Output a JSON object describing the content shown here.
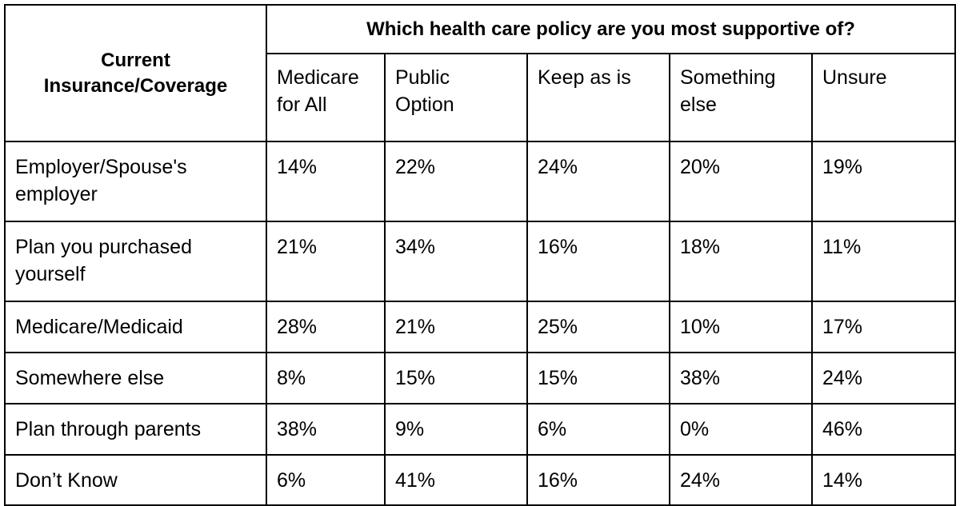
{
  "table": {
    "corner_label_line1": "Current",
    "corner_label_line2": "Insurance/Coverage",
    "group_header": "Which health care policy are you most supportive of?",
    "columns": [
      {
        "line1": "Medicare",
        "line2": "for All"
      },
      {
        "line1": "Public",
        "line2": "Option"
      },
      {
        "line1": "Keep as is",
        "line2": ""
      },
      {
        "line1": "Something",
        "line2": "else"
      },
      {
        "line1": "Unsure",
        "line2": ""
      }
    ],
    "rows": [
      {
        "label_line1": "Employer/Spouse's",
        "label_line2": "employer",
        "values": [
          "14%",
          "22%",
          "24%",
          "20%",
          "19%"
        ]
      },
      {
        "label_line1": "Plan you purchased",
        "label_line2": "yourself",
        "values": [
          "21%",
          "34%",
          "16%",
          "18%",
          "11%"
        ]
      },
      {
        "label_line1": "Medicare/Medicaid",
        "label_line2": "",
        "values": [
          "28%",
          "21%",
          "25%",
          "10%",
          "17%"
        ]
      },
      {
        "label_line1": "Somewhere else",
        "label_line2": "",
        "values": [
          "8%",
          "15%",
          "15%",
          "38%",
          "24%"
        ]
      },
      {
        "label_line1": "Plan through parents",
        "label_line2": "",
        "values": [
          "38%",
          "9%",
          "6%",
          "0%",
          "46%"
        ]
      },
      {
        "label_line1": "Don’t Know",
        "label_line2": "",
        "values": [
          "6%",
          "41%",
          "16%",
          "24%",
          "14%"
        ]
      }
    ]
  }
}
